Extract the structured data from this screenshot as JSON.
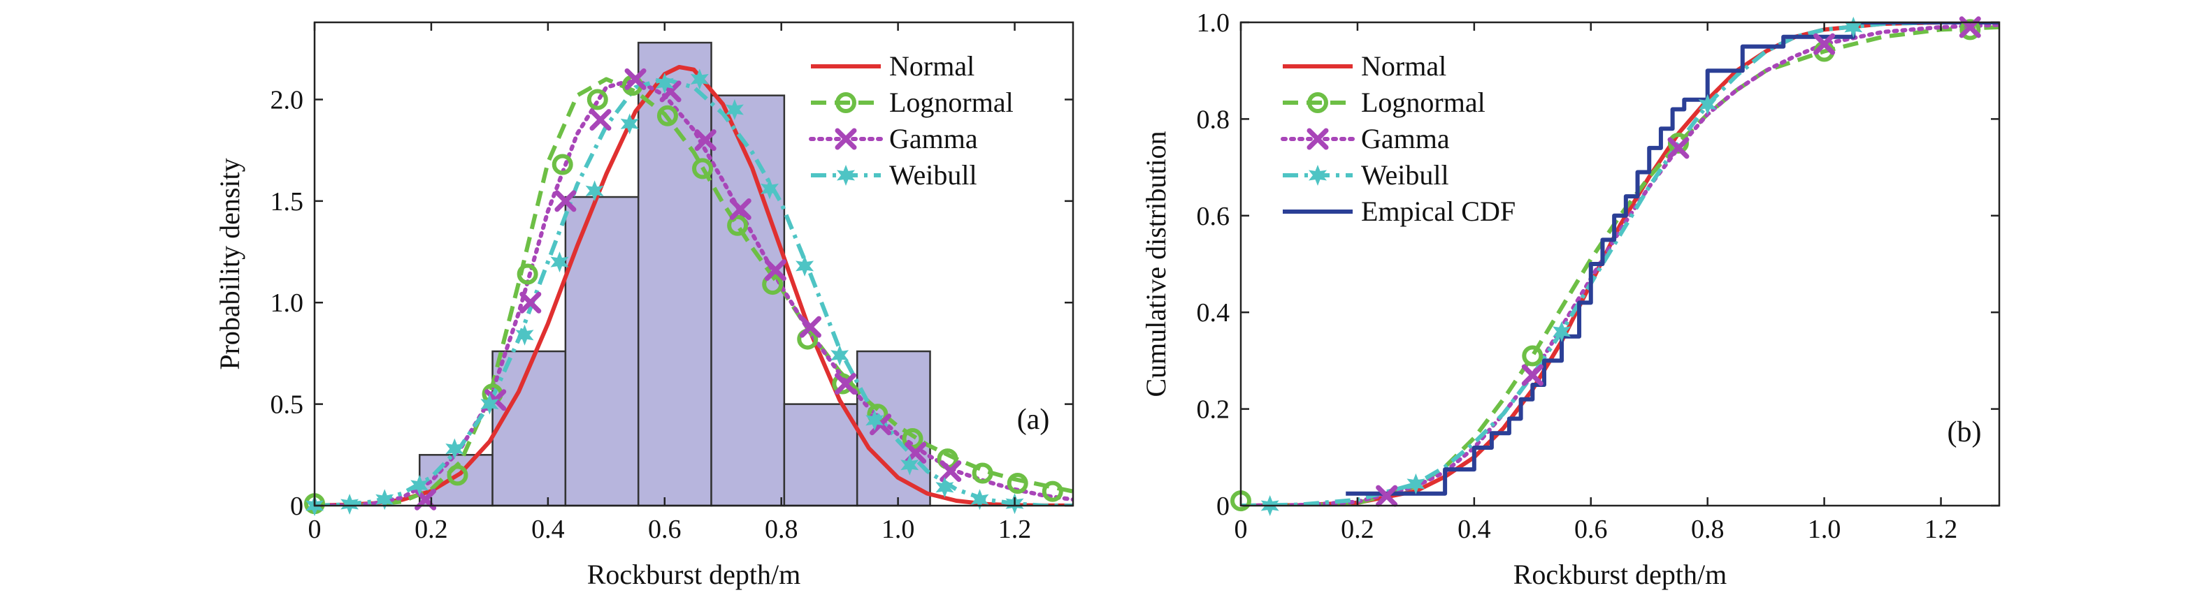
{
  "chart_data": [
    {
      "type": "histogram",
      "panel_label": "(a)",
      "xlabel": "Rockburst depth/m",
      "ylabel": "Probability density",
      "xlim": [
        0,
        1.3
      ],
      "ylim": [
        0,
        2.38
      ],
      "xticks": [
        "0",
        "0.2",
        "0.4",
        "0.6",
        "0.8",
        "1.0",
        "1.2"
      ],
      "xtick_values": [
        0,
        0.2,
        0.4,
        0.6,
        0.8,
        1.0,
        1.2
      ],
      "yticks": [
        "0",
        "0.5",
        "1.0",
        "1.5",
        "2.0"
      ],
      "ytick_values": [
        0,
        0.5,
        1.0,
        1.5,
        2.0
      ],
      "legend_position": "top-right",
      "histogram": {
        "color": "#b7b5dd",
        "bins": [
          {
            "x0": 0.18,
            "x1": 0.305,
            "value": 0.25
          },
          {
            "x0": 0.305,
            "x1": 0.43,
            "value": 0.76
          },
          {
            "x0": 0.43,
            "x1": 0.555,
            "value": 1.52
          },
          {
            "x0": 0.555,
            "x1": 0.68,
            "value": 2.28
          },
          {
            "x0": 0.68,
            "x1": 0.805,
            "value": 2.02
          },
          {
            "x0": 0.805,
            "x1": 0.93,
            "value": 0.5
          },
          {
            "x0": 0.93,
            "x1": 1.055,
            "value": 0.76
          }
        ]
      },
      "series": [
        {
          "name": "Normal",
          "color": "#e03030",
          "style": "solid",
          "marker": "none",
          "x": [
            0,
            0.05,
            0.1,
            0.15,
            0.2,
            0.25,
            0.3,
            0.35,
            0.4,
            0.45,
            0.5,
            0.55,
            0.6,
            0.625,
            0.65,
            0.7,
            0.75,
            0.8,
            0.85,
            0.9,
            0.95,
            1.0,
            1.05,
            1.1,
            1.15,
            1.2,
            1.25,
            1.3
          ],
          "y": [
            0.001,
            0.004,
            0.011,
            0.029,
            0.072,
            0.159,
            0.316,
            0.562,
            0.896,
            1.278,
            1.633,
            1.941,
            2.125,
            2.16,
            2.147,
            1.977,
            1.663,
            1.258,
            0.853,
            0.519,
            0.283,
            0.138,
            0.06,
            0.024,
            0.008,
            0.002,
            0.001,
            0.0
          ]
        },
        {
          "name": "Lognormal",
          "color": "#6dbf45",
          "style": "dash",
          "marker": "circle",
          "x": [
            0,
            0.05,
            0.1,
            0.15,
            0.2,
            0.25,
            0.3,
            0.35,
            0.4,
            0.45,
            0.5,
            0.55,
            0.6,
            0.65,
            0.7,
            0.75,
            0.8,
            0.85,
            0.9,
            0.95,
            1.0,
            1.05,
            1.1,
            1.15,
            1.2,
            1.25,
            1.3
          ],
          "y": [
            0,
            0.001,
            0.005,
            0.02,
            0.08,
            0.215,
            0.536,
            1.098,
            1.69,
            2.02,
            2.1,
            2.04,
            1.928,
            1.74,
            1.49,
            1.27,
            1.07,
            0.85,
            0.66,
            0.51,
            0.39,
            0.3,
            0.23,
            0.17,
            0.13,
            0.1,
            0.07
          ],
          "marker_x": [
            0,
            0.245,
            0.305,
            0.365,
            0.425,
            0.485,
            0.545,
            0.605,
            0.665,
            0.725,
            0.785,
            0.845,
            0.905,
            0.965,
            1.025,
            1.085,
            1.145,
            1.205,
            1.265
          ],
          "marker_y": [
            0.01,
            0.15,
            0.55,
            1.14,
            1.68,
            2.0,
            2.07,
            1.92,
            1.66,
            1.38,
            1.09,
            0.82,
            0.6,
            0.45,
            0.33,
            0.23,
            0.16,
            0.11,
            0.07
          ]
        },
        {
          "name": "Gamma",
          "color": "#a845b8",
          "style": "dot",
          "marker": "x",
          "x": [
            0,
            0.05,
            0.1,
            0.15,
            0.2,
            0.25,
            0.3,
            0.35,
            0.4,
            0.45,
            0.5,
            0.55,
            0.6,
            0.65,
            0.7,
            0.75,
            0.8,
            0.85,
            0.9,
            0.95,
            1.0,
            1.05,
            1.1,
            1.15,
            1.2,
            1.25,
            1.3
          ],
          "y": [
            0,
            0.001,
            0.01,
            0.04,
            0.12,
            0.28,
            0.52,
            0.95,
            1.45,
            1.83,
            2.06,
            2.1,
            2.02,
            1.85,
            1.6,
            1.34,
            1.08,
            0.85,
            0.65,
            0.48,
            0.35,
            0.25,
            0.17,
            0.12,
            0.08,
            0.05,
            0.03
          ],
          "marker_x": [
            0.19,
            0.31,
            0.37,
            0.43,
            0.49,
            0.55,
            0.61,
            0.67,
            0.73,
            0.79,
            0.85,
            0.91,
            0.97,
            1.03,
            1.09
          ],
          "marker_y": [
            0.03,
            0.52,
            1.0,
            1.5,
            1.9,
            2.1,
            2.04,
            1.8,
            1.46,
            1.16,
            0.88,
            0.6,
            0.4,
            0.26,
            0.17
          ]
        },
        {
          "name": "Weibull",
          "color": "#4ec4c4",
          "style": "dashdot",
          "marker": "star",
          "x": [
            0,
            0.05,
            0.1,
            0.15,
            0.2,
            0.25,
            0.3,
            0.35,
            0.4,
            0.45,
            0.5,
            0.55,
            0.6,
            0.65,
            0.7,
            0.75,
            0.8,
            0.85,
            0.9,
            0.95,
            1.0,
            1.05,
            1.1,
            1.15,
            1.2,
            1.25,
            1.3
          ],
          "y": [
            0,
            0.005,
            0.02,
            0.06,
            0.14,
            0.29,
            0.5,
            0.82,
            1.2,
            1.58,
            1.87,
            2.06,
            2.1,
            2.06,
            1.93,
            1.74,
            1.49,
            1.14,
            0.77,
            0.5,
            0.32,
            0.17,
            0.08,
            0.03,
            0.01,
            0.0,
            0.0
          ],
          "marker_x": [
            0.0,
            0.06,
            0.12,
            0.18,
            0.24,
            0.3,
            0.36,
            0.42,
            0.48,
            0.54,
            0.6,
            0.66,
            0.72,
            0.78,
            0.84,
            0.9,
            0.96,
            1.02,
            1.08,
            1.14,
            1.2
          ],
          "marker_y": [
            0.0,
            0.007,
            0.03,
            0.1,
            0.28,
            0.5,
            0.84,
            1.2,
            1.55,
            1.88,
            2.08,
            2.1,
            1.95,
            1.56,
            1.18,
            0.74,
            0.42,
            0.2,
            0.09,
            0.03,
            0.01
          ]
        }
      ]
    },
    {
      "type": "line",
      "panel_label": "(b)",
      "xlabel": "Rockburst depth/m",
      "ylabel": "Cumulative distribution",
      "xlim": [
        0,
        1.3
      ],
      "ylim": [
        0,
        1.0
      ],
      "xticks": [
        "0",
        "0.2",
        "0.4",
        "0.6",
        "0.8",
        "1.0",
        "1.2"
      ],
      "xtick_values": [
        0,
        0.2,
        0.4,
        0.6,
        0.8,
        1.0,
        1.2
      ],
      "yticks": [
        "0",
        "0.2",
        "0.4",
        "0.6",
        "0.8",
        "1.0"
      ],
      "ytick_values": [
        0,
        0.2,
        0.4,
        0.6,
        0.8,
        1.0
      ],
      "legend_position": "top-left",
      "series": [
        {
          "name": "Normal",
          "color": "#e03030",
          "style": "solid",
          "marker": "none",
          "x": [
            0,
            0.1,
            0.2,
            0.3,
            0.35,
            0.4,
            0.45,
            0.5,
            0.55,
            0.6,
            0.65,
            0.7,
            0.75,
            0.8,
            0.85,
            0.9,
            0.95,
            1.0,
            1.1,
            1.2,
            1.3
          ],
          "y": [
            0,
            0.001,
            0.006,
            0.03,
            0.06,
            0.1,
            0.16,
            0.24,
            0.34,
            0.46,
            0.58,
            0.68,
            0.77,
            0.84,
            0.9,
            0.94,
            0.97,
            0.985,
            0.997,
            1.0,
            1.0
          ]
        },
        {
          "name": "Lognormal",
          "color": "#6dbf45",
          "style": "dash",
          "marker": "circle",
          "x": [
            0,
            0.1,
            0.2,
            0.3,
            0.35,
            0.4,
            0.45,
            0.5,
            0.55,
            0.6,
            0.65,
            0.7,
            0.75,
            0.8,
            0.85,
            0.9,
            0.95,
            1.0,
            1.1,
            1.2,
            1.3
          ],
          "y": [
            0,
            0.0,
            0.005,
            0.04,
            0.08,
            0.14,
            0.22,
            0.31,
            0.41,
            0.51,
            0.6,
            0.68,
            0.75,
            0.81,
            0.86,
            0.9,
            0.92,
            0.94,
            0.97,
            0.985,
            0.99
          ],
          "marker_x": [
            0,
            0.5,
            0.75,
            1.0,
            1.25
          ],
          "marker_y": [
            0.01,
            0.31,
            0.75,
            0.94,
            0.985
          ]
        },
        {
          "name": "Gamma",
          "color": "#a845b8",
          "style": "dot",
          "marker": "x",
          "x": [
            0,
            0.1,
            0.2,
            0.3,
            0.35,
            0.4,
            0.45,
            0.5,
            0.55,
            0.6,
            0.65,
            0.7,
            0.75,
            0.8,
            0.85,
            0.9,
            0.95,
            1.0,
            1.1,
            1.2,
            1.3
          ],
          "y": [
            0,
            0.001,
            0.008,
            0.04,
            0.07,
            0.12,
            0.19,
            0.27,
            0.37,
            0.47,
            0.57,
            0.66,
            0.74,
            0.81,
            0.86,
            0.9,
            0.93,
            0.955,
            0.98,
            0.99,
            0.995
          ],
          "marker_x": [
            0.25,
            0.5,
            0.75,
            1.0,
            1.25
          ],
          "marker_y": [
            0.02,
            0.27,
            0.74,
            0.955,
            0.99
          ]
        },
        {
          "name": "Weibull",
          "color": "#4ec4c4",
          "style": "dashdot",
          "marker": "star",
          "x": [
            0,
            0.1,
            0.2,
            0.3,
            0.35,
            0.4,
            0.45,
            0.5,
            0.55,
            0.6,
            0.65,
            0.7,
            0.75,
            0.8,
            0.85,
            0.9,
            0.95,
            1.0,
            1.1,
            1.2,
            1.3
          ],
          "y": [
            0,
            0.002,
            0.012,
            0.045,
            0.08,
            0.13,
            0.19,
            0.27,
            0.36,
            0.46,
            0.56,
            0.66,
            0.75,
            0.83,
            0.89,
            0.94,
            0.97,
            0.985,
            0.997,
            1.0,
            1.0
          ],
          "marker_x": [
            0.05,
            0.3,
            0.55,
            0.8,
            1.05
          ],
          "marker_y": [
            0.0,
            0.045,
            0.36,
            0.83,
            0.99
          ]
        },
        {
          "name": "Empical CDF",
          "color": "#2b3f96",
          "style": "step",
          "marker": "none",
          "x": [
            0.18,
            0.35,
            0.4,
            0.43,
            0.46,
            0.48,
            0.5,
            0.52,
            0.55,
            0.58,
            0.6,
            0.62,
            0.64,
            0.66,
            0.68,
            0.7,
            0.72,
            0.74,
            0.76,
            0.8,
            0.86,
            0.93,
            1.05
          ],
          "y": [
            0.025,
            0.075,
            0.12,
            0.15,
            0.18,
            0.22,
            0.25,
            0.3,
            0.35,
            0.42,
            0.5,
            0.55,
            0.6,
            0.64,
            0.69,
            0.74,
            0.78,
            0.82,
            0.84,
            0.9,
            0.95,
            0.97,
            1.0
          ]
        }
      ]
    }
  ]
}
